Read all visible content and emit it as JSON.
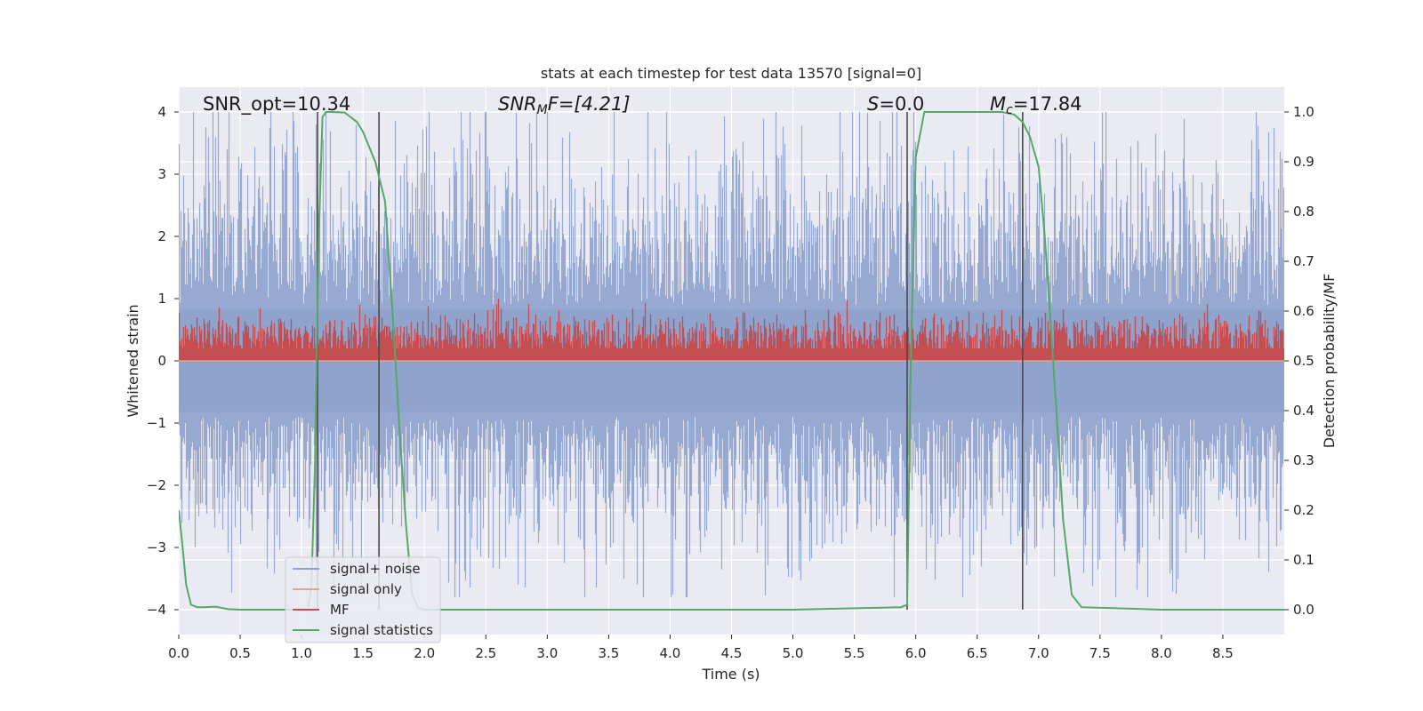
{
  "chart_data": {
    "type": "line",
    "title": "stats at each timestep for test data 13570 [signal=0]",
    "xlabel": "Time (s)",
    "ylabel": "Whitened strain",
    "ylabel_right": "Detection probability/MF",
    "xlim": [
      0.0,
      9.0
    ],
    "ylim": [
      -4.4,
      4.4
    ],
    "ylim_right": [
      -0.05,
      1.05
    ],
    "x_ticks": [
      "0.0",
      "0.5",
      "1.0",
      "1.5",
      "2.0",
      "2.5",
      "3.0",
      "3.5",
      "4.0",
      "4.5",
      "5.0",
      "5.5",
      "6.0",
      "6.5",
      "7.0",
      "7.5",
      "8.0",
      "8.5"
    ],
    "y_ticks": [
      "−4",
      "−3",
      "−2",
      "−1",
      "0",
      "1",
      "2",
      "3",
      "4"
    ],
    "y_ticks_right": [
      "0.0",
      "0.1",
      "0.2",
      "0.3",
      "0.4",
      "0.5",
      "0.6",
      "0.7",
      "0.8",
      "0.9",
      "1.0"
    ],
    "grid": true,
    "legend_position": "lower-left",
    "annotations": {
      "snr_opt": "SNR_opt=10.34",
      "snr_mf_main": "SNR",
      "snr_mf_sub": "M",
      "snr_mf_rest": "F=[4.21]",
      "s_sym": "S",
      "s_rest": "=0.0",
      "mc_main": "M",
      "mc_sub": "c",
      "mc_rest": "=17.84"
    },
    "vertical_lines_x": [
      1.13,
      1.63,
      5.93,
      6.87
    ],
    "series": [
      {
        "name": "signal+ noise",
        "color": "#8ea2cc",
        "kind": "noise",
        "amplitude": 1.55,
        "note": "dense whitened noise envelope, approx ±2.5 with spikes to ±4"
      },
      {
        "name": "signal only",
        "color": "#e8a487",
        "kind": "flat",
        "values": [
          0,
          0
        ]
      },
      {
        "name": "MF",
        "color": "#c44e52",
        "kind": "mf",
        "axis": "right",
        "baseline": 0.5,
        "mean": 0.55,
        "max": 0.625
      },
      {
        "name": "signal statistics",
        "color": "#55a868",
        "axis": "right",
        "x": [
          0.0,
          0.03,
          0.06,
          0.1,
          0.15,
          0.2,
          0.3,
          0.4,
          0.5,
          0.8,
          1.0,
          1.05,
          1.08,
          1.11,
          1.14,
          1.17,
          1.2,
          1.25,
          1.35,
          1.45,
          1.5,
          1.55,
          1.6,
          1.68,
          1.74,
          1.8,
          1.85,
          1.9,
          1.95,
          2.0,
          2.5,
          3.0,
          4.0,
          5.0,
          5.88,
          5.93,
          5.96,
          6.0,
          6.07,
          6.5,
          6.7,
          6.8,
          6.87,
          6.93,
          7.0,
          7.05,
          7.1,
          7.15,
          7.2,
          7.27,
          7.35,
          8.0,
          9.0
        ],
        "values": [
          0.2,
          0.13,
          0.05,
          0.01,
          0.005,
          0.005,
          0.006,
          0.001,
          0.0,
          0.0,
          0.0,
          0.0,
          0.05,
          0.3,
          0.75,
          0.99,
          1.0,
          1.0,
          0.999,
          0.98,
          0.96,
          0.93,
          0.9,
          0.82,
          0.6,
          0.35,
          0.17,
          0.03,
          0.003,
          0.0,
          0.0,
          0.0,
          0.0,
          0.0,
          0.005,
          0.01,
          0.5,
          0.91,
          1.0,
          1.0,
          1.0,
          0.995,
          0.98,
          0.95,
          0.89,
          0.75,
          0.57,
          0.38,
          0.18,
          0.03,
          0.005,
          0.0,
          0.0
        ]
      }
    ]
  },
  "colors": {
    "background": "#eaeaf2",
    "grid": "#ffffff",
    "vline": "#4a4a4a",
    "text": "#262626"
  }
}
